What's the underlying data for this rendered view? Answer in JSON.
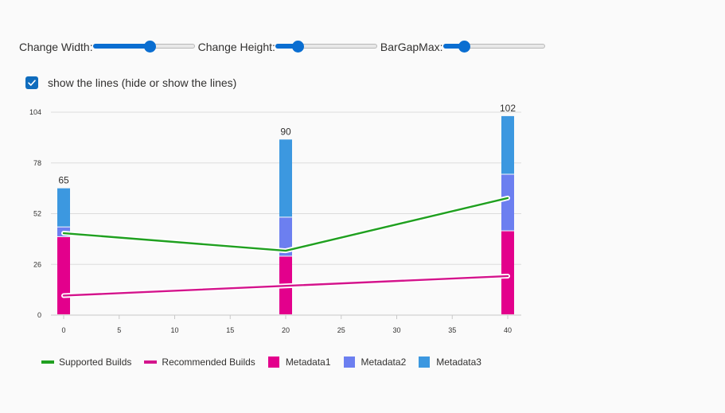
{
  "controls": {
    "width": {
      "label": "Change Width:",
      "fraction": 0.56
    },
    "height": {
      "label": "Change Height:",
      "fraction": 0.22
    },
    "gap": {
      "label": "BarGapMax:",
      "fraction": 0.21
    }
  },
  "checkbox": {
    "checked": true,
    "label": "show the lines (hide or show the lines)"
  },
  "chart_data": {
    "type": "bar",
    "stacked": true,
    "x": [
      0,
      20,
      40
    ],
    "xlim": [
      0,
      40
    ],
    "xticks": [
      0,
      5,
      10,
      15,
      20,
      25,
      30,
      35,
      40
    ],
    "ylim": [
      0,
      104
    ],
    "yticks": [
      0,
      26,
      52,
      78,
      104
    ],
    "grid": true,
    "legend_position": "bottom-left",
    "series": [
      {
        "name": "Metadata1",
        "values": [
          40,
          30,
          43
        ],
        "color": "#e3008c"
      },
      {
        "name": "Metadata2",
        "values": [
          5,
          20,
          29
        ],
        "color": "#6c7ff0"
      },
      {
        "name": "Metadata3",
        "values": [
          20,
          40,
          30
        ],
        "color": "#3c98e0"
      }
    ],
    "totals": [
      "65",
      "90",
      "102"
    ],
    "lines": [
      {
        "name": "Supported Builds",
        "x": [
          0,
          20,
          40
        ],
        "values": [
          42,
          33,
          60
        ],
        "color": "#20a020"
      },
      {
        "name": "Recommended Builds",
        "x": [
          0,
          40
        ],
        "values": [
          10,
          20
        ],
        "color": "#d4148c"
      }
    ]
  }
}
